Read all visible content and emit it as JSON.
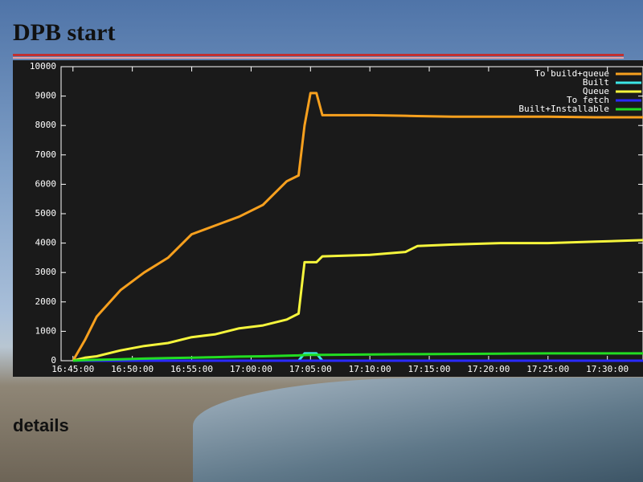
{
  "title": "DPB start",
  "details": "details",
  "chart_data": {
    "type": "line",
    "x": [
      "16:45:00",
      "16:46:00",
      "16:47:00",
      "16:49:00",
      "16:51:00",
      "16:53:00",
      "16:55:00",
      "16:57:00",
      "16:59:00",
      "17:01:00",
      "17:03:00",
      "17:04:00",
      "17:04:30",
      "17:05:00",
      "17:05:30",
      "17:06:00",
      "17:10:00",
      "17:13:00",
      "17:14:00",
      "17:17:00",
      "17:21:00",
      "17:25:00",
      "17:29:00",
      "17:33:00"
    ],
    "series": [
      {
        "name": "To build+queue",
        "color": "#f7a01e",
        "values": [
          0,
          700,
          1500,
          2400,
          3000,
          3500,
          4300,
          4600,
          4900,
          5300,
          6100,
          6300,
          8000,
          9100,
          9100,
          8350,
          8350,
          8330,
          8320,
          8300,
          8300,
          8300,
          8280,
          8280
        ]
      },
      {
        "name": "Built",
        "color": "#3ce6e6",
        "values": [
          0,
          0,
          0,
          0,
          0,
          0,
          0,
          0,
          0,
          0,
          0,
          0,
          250,
          250,
          250,
          0,
          0,
          0,
          0,
          0,
          0,
          0,
          0,
          0
        ]
      },
      {
        "name": "Queue",
        "color": "#f5f53c",
        "values": [
          0,
          100,
          150,
          350,
          500,
          600,
          800,
          900,
          1100,
          1200,
          1400,
          1600,
          3350,
          3350,
          3350,
          3550,
          3600,
          3700,
          3900,
          3950,
          4000,
          4000,
          4050,
          4100
        ]
      },
      {
        "name": "To fetch",
        "color": "#2a2aff",
        "values": [
          0,
          0,
          0,
          0,
          0,
          0,
          0,
          0,
          0,
          0,
          0,
          0,
          0,
          0,
          0,
          0,
          0,
          0,
          0,
          0,
          0,
          0,
          0,
          0
        ]
      },
      {
        "name": "Built+Installable",
        "color": "#22dd22",
        "values": [
          0,
          20,
          30,
          50,
          70,
          90,
          100,
          120,
          140,
          150,
          170,
          180,
          190,
          200,
          200,
          200,
          210,
          220,
          220,
          230,
          240,
          250,
          250,
          250
        ]
      }
    ],
    "xlim": [
      "16:44:00",
      "17:33:00"
    ],
    "xticks": [
      "16:45:00",
      "16:50:00",
      "16:55:00",
      "17:00:00",
      "17:05:00",
      "17:10:00",
      "17:15:00",
      "17:20:00",
      "17:25:00",
      "17:30:00"
    ],
    "ylim": [
      0,
      10000
    ],
    "yticks": [
      0,
      1000,
      2000,
      3000,
      4000,
      5000,
      6000,
      7000,
      8000,
      9000,
      10000
    ],
    "legend": "upper right"
  }
}
